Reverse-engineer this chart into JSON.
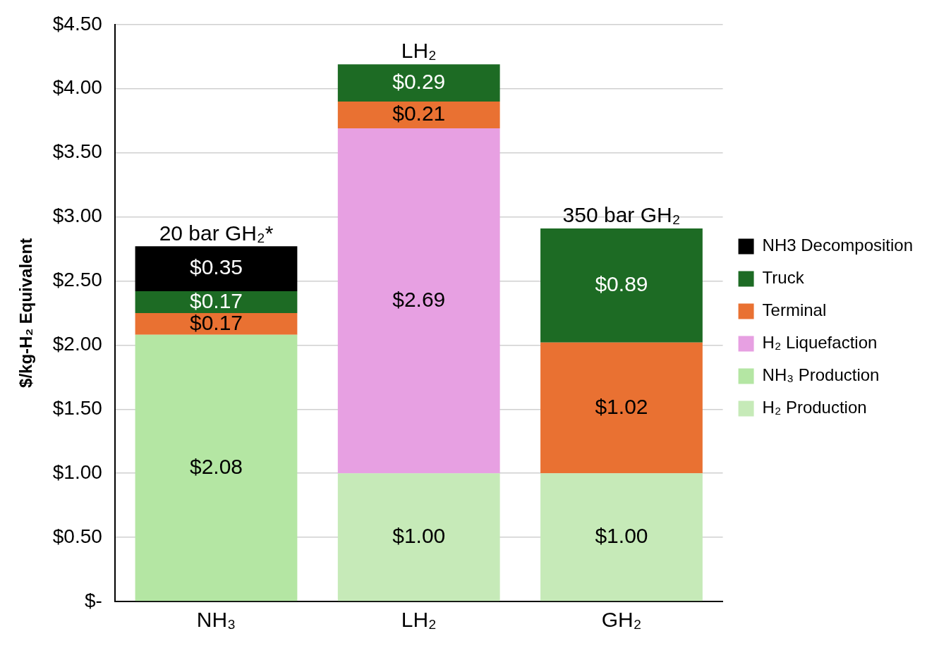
{
  "chart_data": {
    "type": "bar",
    "stacked": true,
    "ylabel": "$/kg-H₂ Equivalent",
    "categories": [
      "NH₃",
      "LH₂",
      "GH₂"
    ],
    "series": [
      {
        "name": "H₂ Production",
        "color": "#c6eab8",
        "values": [
          null,
          1.0,
          1.0
        ],
        "value_labels": [
          null,
          "$1.00",
          "$1.00"
        ]
      },
      {
        "name": "NH₃ Production",
        "color": "#b4e6a3",
        "values": [
          2.08,
          null,
          null
        ],
        "value_labels": [
          "$2.08",
          null,
          null
        ]
      },
      {
        "name": "H₂ Liquefaction",
        "color": "#e7a0e2",
        "values": [
          null,
          2.69,
          null
        ],
        "value_labels": [
          null,
          "$2.69",
          null
        ]
      },
      {
        "name": "Terminal",
        "color": "#e97132",
        "values": [
          0.17,
          0.21,
          1.02
        ],
        "value_labels": [
          "$0.17",
          "$0.21",
          "$1.02"
        ]
      },
      {
        "name": "Truck",
        "color": "#1d6b24",
        "values": [
          0.17,
          0.29,
          0.89
        ],
        "value_labels": [
          "$0.17",
          "$0.29",
          "$0.89"
        ]
      },
      {
        "name": "NH3 Decomposition",
        "color": "#000000",
        "values": [
          0.35,
          null,
          null
        ],
        "value_labels": [
          "$0.35",
          null,
          null
        ]
      }
    ],
    "ylim": [
      0,
      4.5
    ],
    "yticks": [
      {
        "value": 0,
        "label": "$-"
      },
      {
        "value": 0.5,
        "label": "$0.50"
      },
      {
        "value": 1,
        "label": "$1.00"
      },
      {
        "value": 1.5,
        "label": "$1.50"
      },
      {
        "value": 2,
        "label": "$2.00"
      },
      {
        "value": 2.5,
        "label": "$2.50"
      },
      {
        "value": 3,
        "label": "$3.00"
      },
      {
        "value": 3.5,
        "label": "$3.50"
      },
      {
        "value": 4,
        "label": "$4.00"
      },
      {
        "value": 4.5,
        "label": "$4.50"
      }
    ],
    "grid": "y",
    "legend": "right",
    "annotations": [
      {
        "text": "20 bar GH₂*",
        "x": "NH₃",
        "y": 2.77
      },
      {
        "text": "LH₂",
        "x": "LH₂",
        "y": 4.19
      },
      {
        "text": "350 bar GH₂",
        "x": "GH₂",
        "y": 2.91
      }
    ]
  }
}
